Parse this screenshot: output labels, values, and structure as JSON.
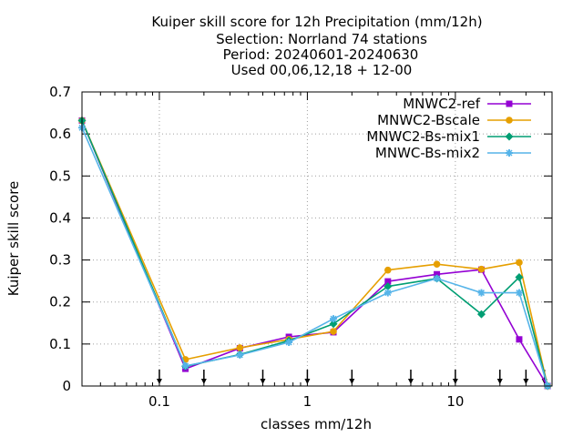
{
  "chart_data": {
    "type": "line",
    "title_lines": [
      "Kuiper skill score  for 12h Precipitation (mm/12h)",
      "Selection: Norrland     74 stations",
      "Period: 20240601-20240630",
      "Used 00,06,12,18 + 12-00"
    ],
    "xlabel": "classes mm/12h",
    "ylabel": "Kuiper skill score",
    "x_scale": "log",
    "xlim": [
      0.03,
      45
    ],
    "ylim": [
      0,
      0.7
    ],
    "x_ticks": [
      0.1,
      1,
      10
    ],
    "x_tick_labels": [
      "0.1",
      "1",
      "10"
    ],
    "y_ticks": [
      0,
      0.1,
      0.2,
      0.3,
      0.4,
      0.5,
      0.6,
      0.7
    ],
    "y_tick_labels": [
      "0",
      "0.1",
      "0.2",
      "0.3",
      "0.4",
      "0.5",
      "0.6",
      "0.7"
    ],
    "grid": true,
    "legend_position": "top-right",
    "threshold_markers": [
      0.1,
      0.2,
      0.5,
      1,
      2,
      5,
      10,
      20,
      30,
      40
    ],
    "series": [
      {
        "name": "MNWC2-ref",
        "color": "#9400d3",
        "marker": "square",
        "x": [
          0.03,
          0.15,
          0.35,
          0.75,
          1.5,
          3.5,
          7.5,
          15,
          27,
          42
        ],
        "y": [
          0.632,
          0.041,
          0.09,
          0.117,
          0.128,
          0.249,
          0.266,
          0.277,
          0.111,
          0.0
        ]
      },
      {
        "name": "MNWC2-Bscale",
        "color": "#e69f00",
        "marker": "circle",
        "x": [
          0.03,
          0.15,
          0.35,
          0.75,
          1.5,
          3.5,
          7.5,
          15,
          27,
          42
        ],
        "y": [
          0.632,
          0.063,
          0.091,
          0.111,
          0.13,
          0.276,
          0.29,
          0.278,
          0.294,
          0.0
        ]
      },
      {
        "name": "MNWC2-Bs-mix1",
        "color": "#009e73",
        "marker": "diamond",
        "x": [
          0.03,
          0.15,
          0.35,
          0.75,
          1.5,
          3.5,
          7.5,
          15,
          27,
          42
        ],
        "y": [
          0.632,
          0.047,
          0.075,
          0.108,
          0.148,
          0.237,
          0.256,
          0.171,
          0.259,
          0.0
        ]
      },
      {
        "name": "MNWC-Bs-mix2",
        "color": "#56b4e9",
        "marker": "star",
        "x": [
          0.03,
          0.15,
          0.35,
          0.75,
          1.5,
          3.5,
          7.5,
          15,
          27,
          42
        ],
        "y": [
          0.615,
          0.048,
          0.074,
          0.104,
          0.16,
          0.222,
          0.256,
          0.222,
          0.222,
          0.0
        ]
      }
    ]
  }
}
